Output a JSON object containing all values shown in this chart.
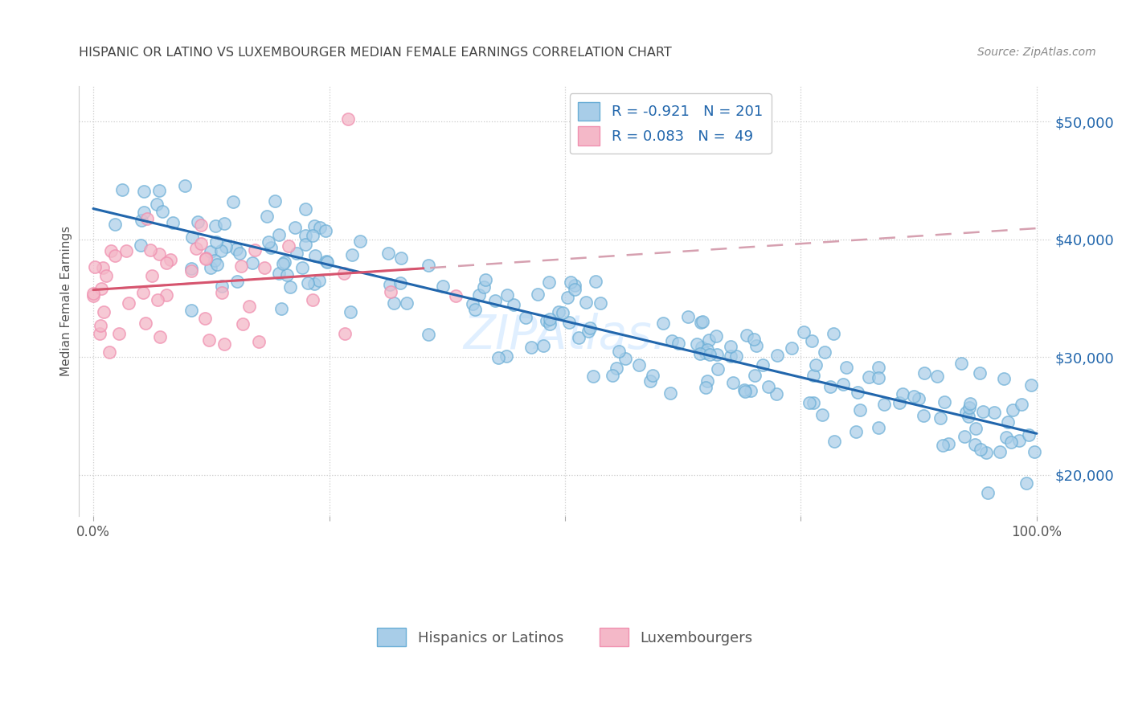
{
  "title": "HISPANIC OR LATINO VS LUXEMBOURGER MEDIAN FEMALE EARNINGS CORRELATION CHART",
  "source": "Source: ZipAtlas.com",
  "ylabel": "Median Female Earnings",
  "yticks": [
    20000,
    30000,
    40000,
    50000
  ],
  "ytick_labels": [
    "$20,000",
    "$30,000",
    "$40,000",
    "$50,000"
  ],
  "legend_labels": [
    "Hispanics or Latinos",
    "Luxembourgers"
  ],
  "blue_color": "#a8cde8",
  "pink_color": "#f4b8c8",
  "blue_edge_color": "#6aaed6",
  "pink_edge_color": "#f090b0",
  "blue_line_color": "#2166ac",
  "pink_line_color": "#d6546e",
  "pink_dash_color": "#d6a0b0",
  "title_color": "#444444",
  "source_color": "#888888",
  "axis_label_color": "#555555",
  "yaxis_tick_color": "#2166ac",
  "R_blue": -0.921,
  "N_blue": 201,
  "R_pink": 0.083,
  "N_pink": 49,
  "seed_blue": 12,
  "seed_pink": 77,
  "background_color": "#ffffff",
  "grid_color": "#cccccc",
  "watermark_color": "#ddeeff"
}
